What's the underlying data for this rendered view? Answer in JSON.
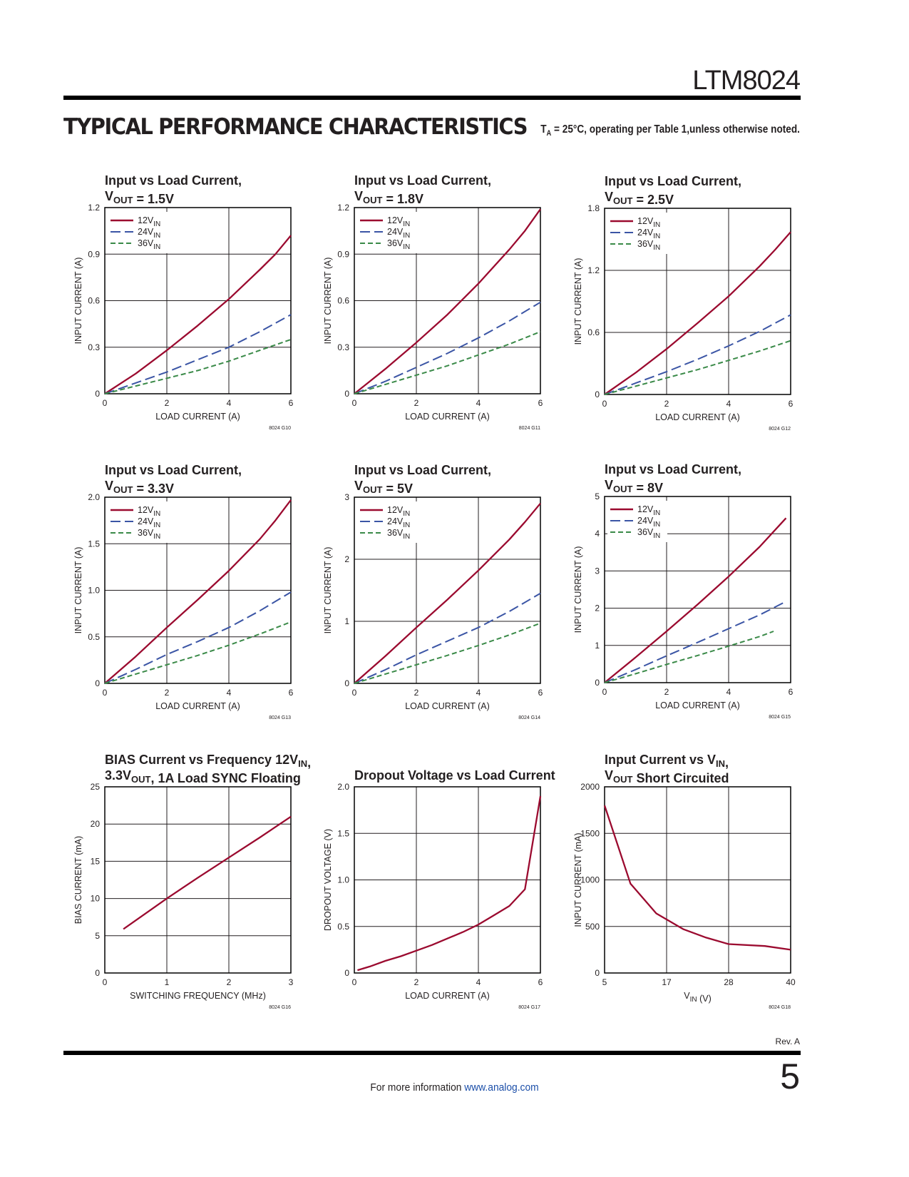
{
  "header": {
    "part_number": "LTM8024"
  },
  "section": {
    "title": "TYPICAL PERFORMANCE CHARACTERISTICS",
    "condition_prefix": "T",
    "condition_sub": "A",
    "condition_rest": " = 25°C, operating per Table 1,unless otherwise noted."
  },
  "footer": {
    "revision": "Rev. A",
    "page_number": "5",
    "info_text": "For more information ",
    "link_text": "www.analog.com"
  },
  "colors": {
    "12VIN": "#9b0a2f",
    "24VIN": "#3b55a5",
    "36VIN": "#3a8a48",
    "grid": "#231f20"
  },
  "chart_data": [
    {
      "type": "line",
      "code": "8024 G10",
      "title": [
        [
          {
            "t": "Input vs Load Current,"
          }
        ],
        [
          {
            "t": "V"
          },
          {
            "s": "OUT"
          },
          {
            "t": " = 1.5V"
          }
        ]
      ],
      "xlabel": [
        {
          "t": "LOAD CURRENT (A)"
        }
      ],
      "ylabel": "INPUT CURRENT (A)",
      "xlim": [
        0,
        6
      ],
      "ylim": [
        0,
        1.2
      ],
      "xticks": [
        "0",
        "2",
        "4",
        "6"
      ],
      "yticks": [
        "0",
        "0.3",
        "0.6",
        "0.9",
        "1.2"
      ],
      "grid": true,
      "legend": "top-left",
      "series": [
        {
          "name": "12V",
          "name_sub": "IN",
          "style": "solid",
          "color_key": "12VIN",
          "x": [
            0,
            1,
            2,
            3,
            4,
            5,
            5.5,
            6
          ],
          "y": [
            0,
            0.13,
            0.28,
            0.44,
            0.61,
            0.8,
            0.9,
            1.02
          ]
        },
        {
          "name": "24V",
          "name_sub": "IN",
          "style": "long-dash",
          "color_key": "24VIN",
          "x": [
            0,
            1,
            2,
            3,
            4,
            5,
            6
          ],
          "y": [
            0,
            0.07,
            0.14,
            0.22,
            0.3,
            0.4,
            0.51
          ]
        },
        {
          "name": "36V",
          "name_sub": "IN",
          "style": "short-dash",
          "color_key": "36VIN",
          "x": [
            0,
            1,
            2,
            3,
            4,
            5,
            6
          ],
          "y": [
            0,
            0.05,
            0.1,
            0.15,
            0.21,
            0.28,
            0.35
          ]
        }
      ]
    },
    {
      "type": "line",
      "code": "8024 G11",
      "title": [
        [
          {
            "t": "Input vs Load Current,"
          }
        ],
        [
          {
            "t": "V"
          },
          {
            "s": "OUT"
          },
          {
            "t": " = 1.8V"
          }
        ]
      ],
      "xlabel": [
        {
          "t": "LOAD CURRENT (A)"
        }
      ],
      "ylabel": "INPUT CURRENT (A)",
      "xlim": [
        0,
        6
      ],
      "ylim": [
        0,
        1.2
      ],
      "xticks": [
        "0",
        "2",
        "4",
        "6"
      ],
      "yticks": [
        "0",
        "0.3",
        "0.6",
        "0.9",
        "1.2"
      ],
      "grid": true,
      "legend": "top-left",
      "series": [
        {
          "name": "12V",
          "name_sub": "IN",
          "style": "solid",
          "color_key": "12VIN",
          "x": [
            0,
            1,
            2,
            3,
            4,
            5,
            5.5,
            6
          ],
          "y": [
            0,
            0.16,
            0.33,
            0.51,
            0.71,
            0.93,
            1.05,
            1.19
          ]
        },
        {
          "name": "24V",
          "name_sub": "IN",
          "style": "long-dash",
          "color_key": "24VIN",
          "x": [
            0,
            1,
            2,
            3,
            4,
            5,
            6
          ],
          "y": [
            0,
            0.08,
            0.17,
            0.26,
            0.36,
            0.47,
            0.59
          ]
        },
        {
          "name": "36V",
          "name_sub": "IN",
          "style": "short-dash",
          "color_key": "36VIN",
          "x": [
            0,
            1,
            2,
            3,
            4,
            5,
            6
          ],
          "y": [
            0,
            0.06,
            0.12,
            0.18,
            0.25,
            0.32,
            0.4
          ]
        }
      ]
    },
    {
      "type": "line",
      "code": "8024 G12",
      "title": [
        [
          {
            "t": "Input vs Load Current,"
          }
        ],
        [
          {
            "t": "V"
          },
          {
            "s": "OUT"
          },
          {
            "t": " = 2.5V"
          }
        ]
      ],
      "xlabel": [
        {
          "t": "LOAD CURRENT (A)"
        }
      ],
      "ylabel": "INPUT CURRENT (A)",
      "xlim": [
        0,
        6
      ],
      "ylim": [
        0,
        1.8
      ],
      "xticks": [
        "0",
        "2",
        "4",
        "6"
      ],
      "yticks": [
        "0",
        "0.6",
        "1.2",
        "1.8"
      ],
      "grid": true,
      "legend": "top-left",
      "series": [
        {
          "name": "12V",
          "name_sub": "IN",
          "style": "solid",
          "color_key": "12VIN",
          "x": [
            0,
            1,
            2,
            3,
            4,
            5,
            5.5,
            6
          ],
          "y": [
            0,
            0.21,
            0.44,
            0.69,
            0.95,
            1.24,
            1.4,
            1.57
          ]
        },
        {
          "name": "24V",
          "name_sub": "IN",
          "style": "long-dash",
          "color_key": "24VIN",
          "x": [
            0,
            1,
            2,
            3,
            4,
            5,
            6
          ],
          "y": [
            0,
            0.11,
            0.22,
            0.34,
            0.47,
            0.61,
            0.77
          ]
        },
        {
          "name": "36V",
          "name_sub": "IN",
          "style": "short-dash",
          "color_key": "36VIN",
          "x": [
            0,
            1,
            2,
            3,
            4,
            5,
            6
          ],
          "y": [
            0,
            0.08,
            0.16,
            0.24,
            0.33,
            0.42,
            0.52
          ]
        }
      ]
    },
    {
      "type": "line",
      "code": "8024 G13",
      "title": [
        [
          {
            "t": "Input vs Load Current,"
          }
        ],
        [
          {
            "t": "V"
          },
          {
            "s": "OUT"
          },
          {
            "t": " = 3.3V"
          }
        ]
      ],
      "xlabel": [
        {
          "t": "LOAD CURRENT (A)"
        }
      ],
      "ylabel": "INPUT CURRENT (A)",
      "xlim": [
        0,
        6
      ],
      "ylim": [
        0,
        2.0
      ],
      "xticks": [
        "0",
        "2",
        "4",
        "6"
      ],
      "yticks": [
        "0",
        "0.5",
        "1.0",
        "1.5",
        "2.0"
      ],
      "grid": true,
      "legend": "top-left",
      "series": [
        {
          "name": "12V",
          "name_sub": "IN",
          "style": "solid",
          "color_key": "12VIN",
          "x": [
            0,
            1,
            2,
            3,
            4,
            5,
            5.5,
            6
          ],
          "y": [
            0,
            0.29,
            0.6,
            0.9,
            1.21,
            1.55,
            1.75,
            1.97
          ]
        },
        {
          "name": "24V",
          "name_sub": "IN",
          "style": "long-dash",
          "color_key": "24VIN",
          "x": [
            0,
            1,
            2,
            3,
            4,
            5,
            6
          ],
          "y": [
            0,
            0.15,
            0.31,
            0.45,
            0.6,
            0.78,
            0.98
          ]
        },
        {
          "name": "36V",
          "name_sub": "IN",
          "style": "short-dash",
          "color_key": "36VIN",
          "x": [
            0,
            1,
            2,
            3,
            4,
            5,
            6
          ],
          "y": [
            0,
            0.1,
            0.2,
            0.3,
            0.41,
            0.53,
            0.66
          ]
        }
      ]
    },
    {
      "type": "line",
      "code": "8024 G14",
      "title": [
        [
          {
            "t": "Input vs Load Current,"
          }
        ],
        [
          {
            "t": "V"
          },
          {
            "s": "OUT"
          },
          {
            "t": " = 5V"
          }
        ]
      ],
      "xlabel": [
        {
          "t": "LOAD CURRENT (A)"
        }
      ],
      "ylabel": "INPUT CURRENT (A)",
      "xlim": [
        0,
        6
      ],
      "ylim": [
        0,
        3
      ],
      "xticks": [
        "0",
        "2",
        "4",
        "6"
      ],
      "yticks": [
        "0",
        "1",
        "2",
        "3"
      ],
      "grid": true,
      "legend": "top-left",
      "series": [
        {
          "name": "12V",
          "name_sub": "IN",
          "style": "solid",
          "color_key": "12VIN",
          "x": [
            0,
            1,
            2,
            3,
            4,
            5,
            5.5,
            6
          ],
          "y": [
            0,
            0.44,
            0.9,
            1.35,
            1.82,
            2.32,
            2.6,
            2.9
          ]
        },
        {
          "name": "24V",
          "name_sub": "IN",
          "style": "long-dash",
          "color_key": "24VIN",
          "x": [
            0,
            1,
            2,
            3,
            4,
            5,
            6
          ],
          "y": [
            0,
            0.22,
            0.46,
            0.68,
            0.9,
            1.16,
            1.45
          ]
        },
        {
          "name": "36V",
          "name_sub": "IN",
          "style": "short-dash",
          "color_key": "36VIN",
          "x": [
            0,
            1,
            2,
            3,
            4,
            5,
            6
          ],
          "y": [
            0,
            0.15,
            0.3,
            0.45,
            0.61,
            0.78,
            0.97
          ]
        }
      ]
    },
    {
      "type": "line",
      "code": "8024 G15",
      "title": [
        [
          {
            "t": "Input vs Load Current,"
          }
        ],
        [
          {
            "t": "V"
          },
          {
            "s": "OUT"
          },
          {
            "t": " = 8V"
          }
        ]
      ],
      "xlabel": [
        {
          "t": "LOAD CURRENT (A)"
        }
      ],
      "ylabel": "INPUT CURRENT (A)",
      "xlim": [
        0,
        6
      ],
      "ylim": [
        0,
        5
      ],
      "xticks": [
        "0",
        "2",
        "4",
        "6"
      ],
      "yticks": [
        "0",
        "1",
        "2",
        "3",
        "4",
        "5"
      ],
      "grid": true,
      "legend": "top-left",
      "series": [
        {
          "name": "12V",
          "name_sub": "IN",
          "style": "solid",
          "color_key": "12VIN",
          "x": [
            0,
            1,
            2,
            3,
            4,
            5,
            5.85
          ],
          "y": [
            0,
            0.68,
            1.38,
            2.1,
            2.85,
            3.65,
            4.42
          ]
        },
        {
          "name": "24V",
          "name_sub": "IN",
          "style": "long-dash",
          "color_key": "24VIN",
          "x": [
            0,
            1,
            2,
            3,
            4,
            5,
            5.85
          ],
          "y": [
            0,
            0.35,
            0.72,
            1.08,
            1.45,
            1.82,
            2.18
          ]
        },
        {
          "name": "36V",
          "name_sub": "IN",
          "style": "short-dash",
          "color_key": "36VIN",
          "x": [
            0,
            1,
            2,
            3,
            4,
            5,
            5.45
          ],
          "y": [
            0,
            0.24,
            0.49,
            0.73,
            0.98,
            1.24,
            1.38
          ]
        }
      ]
    },
    {
      "type": "line",
      "code": "8024 G16",
      "title": [
        [
          {
            "t": "BIAS Current vs Frequency 12V"
          },
          {
            "s": "IN"
          },
          {
            "t": ","
          }
        ],
        [
          {
            "t": "3.3V"
          },
          {
            "s": "OUT"
          },
          {
            "t": ", 1A Load SYNC Floating"
          }
        ]
      ],
      "xlabel": [
        {
          "t": "SWITCHING FREQUENCY (MHz)"
        }
      ],
      "ylabel": "BIAS CURRENT (mA)",
      "xlim": [
        0,
        3
      ],
      "ylim": [
        0,
        25
      ],
      "xticks": [
        "0",
        "1",
        "2",
        "3"
      ],
      "yticks": [
        "0",
        "5",
        "10",
        "15",
        "20",
        "25"
      ],
      "grid": true,
      "legend": "none",
      "series": [
        {
          "style": "solid",
          "color_key": "12VIN",
          "x": [
            0.3,
            1,
            1.5,
            2,
            2.5,
            3
          ],
          "y": [
            5.9,
            10,
            12.8,
            15.5,
            18.2,
            21
          ]
        }
      ]
    },
    {
      "type": "line",
      "code": "8024 G17",
      "title": [
        [
          {
            "t": "Dropout Voltage vs Load Current"
          }
        ]
      ],
      "xlabel": [
        {
          "t": "LOAD CURRENT (A)"
        }
      ],
      "ylabel": "DROPOUT VOLTAGE (V)",
      "xlim": [
        0,
        6
      ],
      "ylim": [
        0,
        2.0
      ],
      "xticks": [
        "0",
        "2",
        "4",
        "6"
      ],
      "yticks": [
        "0",
        "0.5",
        "1.0",
        "1.5",
        "2.0"
      ],
      "grid": true,
      "legend": "none",
      "series": [
        {
          "style": "solid",
          "color_key": "12VIN",
          "x": [
            0.1,
            0.5,
            1,
            1.5,
            2,
            2.5,
            3,
            3.5,
            4,
            4.5,
            5,
            5.5,
            6
          ],
          "y": [
            0.03,
            0.07,
            0.13,
            0.18,
            0.24,
            0.3,
            0.37,
            0.44,
            0.52,
            0.62,
            0.72,
            0.9,
            1.9
          ]
        }
      ]
    },
    {
      "type": "line",
      "code": "8024 G18",
      "title": [
        [
          {
            "t": "Input Current vs V"
          },
          {
            "s": "IN"
          },
          {
            "t": ","
          }
        ],
        [
          {
            "t": "V"
          },
          {
            "s": "OUT"
          },
          {
            "t": " Short Circuited"
          }
        ]
      ],
      "xlabel": [
        {
          "t": "V"
        },
        {
          "s": "IN"
        },
        {
          "t": " (V)"
        }
      ],
      "ylabel": "INPUT CURRENT (mA)",
      "xlim": [
        5,
        40
      ],
      "x_tick_values": [
        5,
        17,
        28,
        40
      ],
      "ylim": [
        0,
        2000
      ],
      "xticks": [
        "5",
        "17",
        "28",
        "40"
      ],
      "yticks": [
        "0",
        "500",
        "1000",
        "1500",
        "2000"
      ],
      "grid": true,
      "legend": "none",
      "series": [
        {
          "style": "solid",
          "color_key": "12VIN",
          "x": [
            5,
            10,
            15,
            20,
            24,
            28,
            35,
            40
          ],
          "y": [
            1800,
            960,
            640,
            470,
            380,
            310,
            290,
            250
          ]
        }
      ]
    }
  ]
}
